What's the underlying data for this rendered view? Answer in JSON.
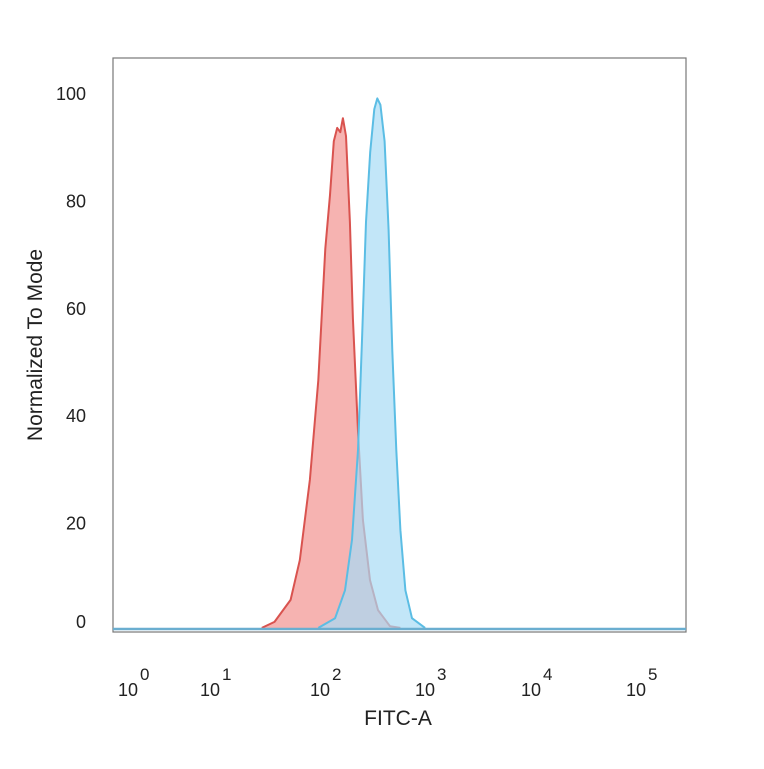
{
  "chart_data": {
    "type": "area",
    "title": "",
    "xlabel": "FITC-A",
    "ylabel": "Normalized To Mode",
    "x_scale": "log",
    "x_ticks": [
      {
        "base": "10",
        "exp": "0",
        "value": 1
      },
      {
        "base": "10",
        "exp": "1",
        "value": 10
      },
      {
        "base": "10",
        "exp": "2",
        "value": 100
      },
      {
        "base": "10",
        "exp": "3",
        "value": 1000
      },
      {
        "base": "10",
        "exp": "4",
        "value": 10000
      },
      {
        "base": "10",
        "exp": "5",
        "value": 100000
      }
    ],
    "y_ticks": [
      "0",
      "20",
      "40",
      "60",
      "80",
      "100"
    ],
    "ylim": [
      0,
      100
    ],
    "grid": false,
    "series": [
      {
        "color": "#d9534f",
        "fill": "#f4a6a3",
        "x": [
          23,
          30,
          42,
          51,
          63,
          75,
          87,
          96,
          104,
          112,
          120,
          127,
          136,
          148,
          158,
          177,
          197,
          230,
          274,
          357,
          448
        ],
        "y": [
          0.4,
          1.5,
          5.6,
          13,
          28,
          46.5,
          71,
          81,
          91,
          93.5,
          92.7,
          95.3,
          92,
          76,
          58,
          37,
          20.5,
          9.3,
          3.7,
          0.7,
          0.4
        ]
      },
      {
        "color": "#5bbde4",
        "fill": "#a8dcf5",
        "x": [
          75,
          107,
          133,
          155,
          177,
          193,
          211,
          231,
          253,
          270,
          289,
          317,
          346,
          375,
          410,
          448,
          500,
          578,
          771
        ],
        "y": [
          0.4,
          2.2,
          7.4,
          16.8,
          33.5,
          54,
          76,
          89,
          97,
          99,
          97.8,
          91,
          74.5,
          52,
          33.5,
          18.6,
          7.4,
          2.2,
          0.4
        ]
      }
    ]
  }
}
